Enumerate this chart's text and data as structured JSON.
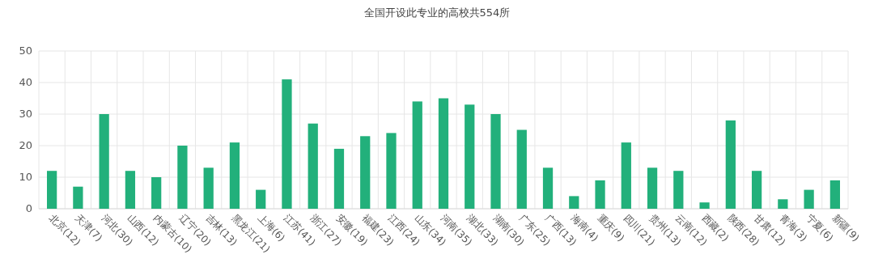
{
  "chart_data": {
    "type": "bar",
    "title": "全国开设此专业的高校共554所",
    "categories": [
      "北京(12)",
      "天津(7)",
      "河北(30)",
      "山西(12)",
      "内蒙古(10)",
      "辽宁(20)",
      "吉林(13)",
      "黑龙江(21)",
      "上海(6)",
      "江苏(41)",
      "浙江(27)",
      "安徽(19)",
      "福建(23)",
      "江西(24)",
      "山东(34)",
      "河南(35)",
      "湖北(33)",
      "湖南(30)",
      "广东(25)",
      "广西(13)",
      "海南(4)",
      "重庆(9)",
      "四川(21)",
      "贵州(13)",
      "云南(12)",
      "西藏(2)",
      "陕西(28)",
      "甘肃(12)",
      "青海(3)",
      "宁夏(6)",
      "新疆(9)"
    ],
    "values": [
      12,
      7,
      30,
      12,
      10,
      20,
      13,
      21,
      6,
      41,
      27,
      19,
      23,
      24,
      34,
      35,
      33,
      30,
      25,
      13,
      4,
      9,
      21,
      13,
      12,
      2,
      28,
      12,
      3,
      6,
      9
    ],
    "color": "#22b07b",
    "ylim": [
      0,
      50
    ],
    "yticks": [
      0,
      10,
      20,
      30,
      40,
      50
    ],
    "grid": true
  }
}
